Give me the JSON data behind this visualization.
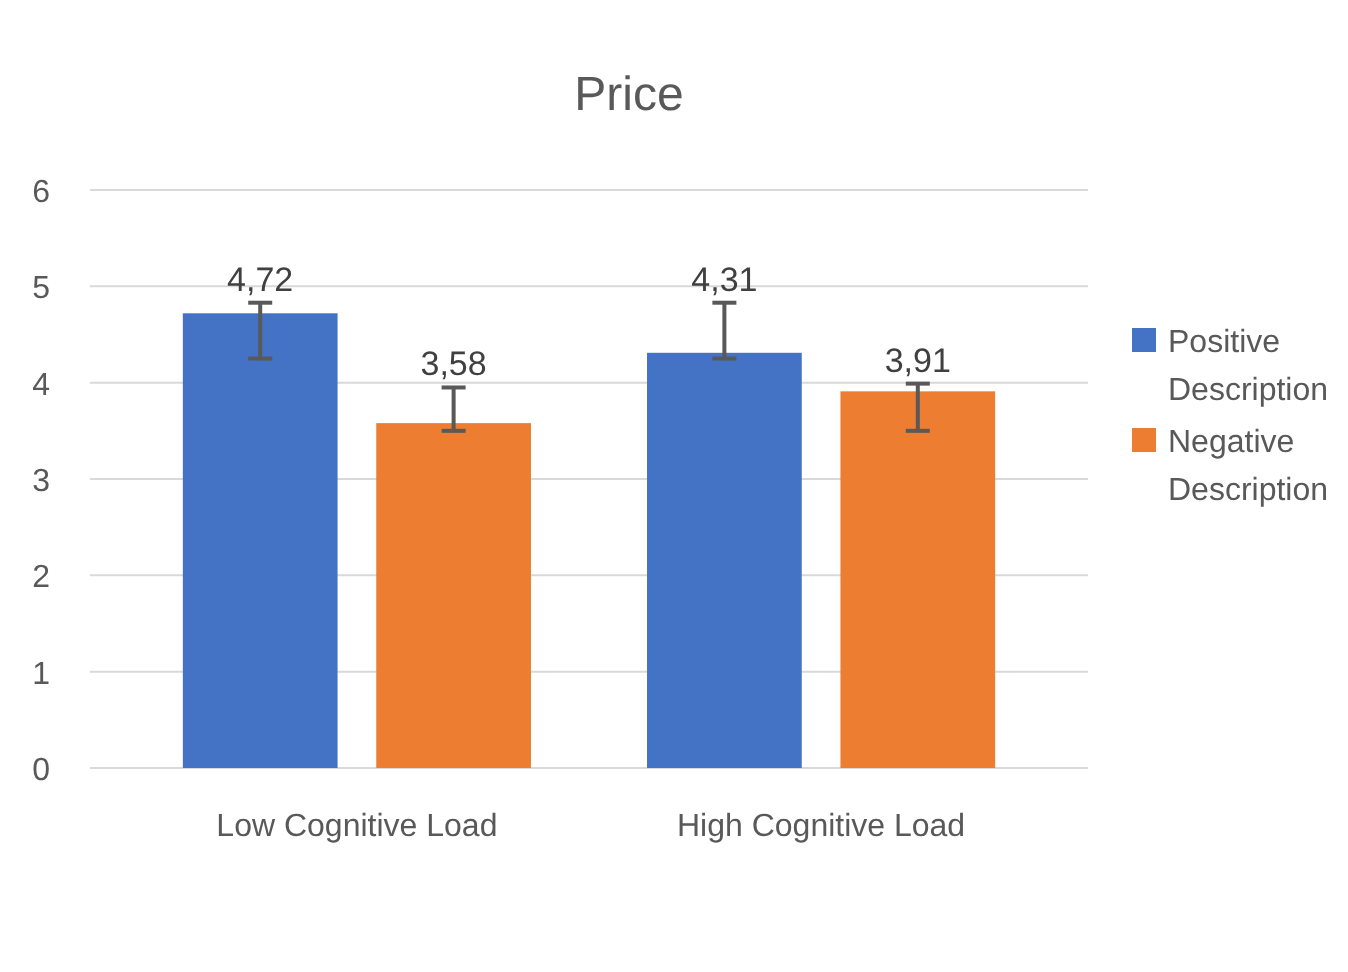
{
  "chart_data": {
    "type": "bar",
    "title": "Price",
    "categories": [
      "Low Cognitive Load",
      "High Cognitive Load"
    ],
    "series": [
      {
        "name": "Positive Description",
        "color": "#4472c4",
        "values": [
          4.72,
          4.31
        ],
        "value_labels": [
          "4,72",
          "4,31"
        ],
        "errors": [
          [
            4.25,
            4.83
          ],
          [
            4.25,
            4.83
          ]
        ]
      },
      {
        "name": "Negative Description",
        "color": "#ed7d31",
        "values": [
          3.58,
          3.91
        ],
        "value_labels": [
          "3,58",
          "3,91"
        ],
        "errors": [
          [
            3.5,
            3.95
          ],
          [
            3.5,
            3.99
          ]
        ]
      }
    ],
    "ylim": [
      0,
      6
    ],
    "yticks": [
      0,
      1,
      2,
      3,
      4,
      5,
      6
    ],
    "grid": "y",
    "legend": "right"
  }
}
